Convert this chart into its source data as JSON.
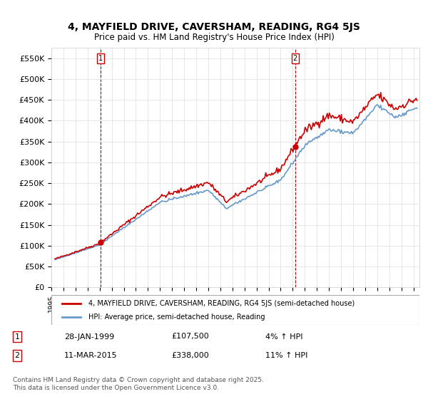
{
  "title_line1": "4, MAYFIELD DRIVE, CAVERSHAM, READING, RG4 5JS",
  "title_line2": "Price paid vs. HM Land Registry's House Price Index (HPI)",
  "ylabel": "",
  "xlabel": "",
  "ylim": [
    0,
    575000
  ],
  "yticks": [
    0,
    50000,
    100000,
    150000,
    200000,
    250000,
    300000,
    350000,
    400000,
    450000,
    500000,
    550000
  ],
  "ytick_labels": [
    "£0",
    "£50K",
    "£100K",
    "£150K",
    "£200K",
    "£250K",
    "£300K",
    "£350K",
    "£400K",
    "£450K",
    "£500K",
    "£550K"
  ],
  "legend_label1": "4, MAYFIELD DRIVE, CAVERSHAM, READING, RG4 5JS (semi-detached house)",
  "legend_label2": "HPI: Average price, semi-detached house, Reading",
  "marker1_label": "1",
  "marker1_date": "28-JAN-1999",
  "marker1_price": "£107,500",
  "marker1_hpi": "4% ↑ HPI",
  "marker1_x": 1999.08,
  "marker1_y": 107500,
  "marker2_label": "2",
  "marker2_date": "11-MAR-2015",
  "marker2_price": "£338,000",
  "marker2_hpi": "11% ↑ HPI",
  "marker2_x": 2015.19,
  "marker2_y": 338000,
  "line_color_price": "#cc0000",
  "line_color_hpi": "#6699cc",
  "vline_color": "#cc0000",
  "marker_box_color": "#cc0000",
  "footer_text": "Contains HM Land Registry data © Crown copyright and database right 2025.\nThis data is licensed under the Open Government Licence v3.0.",
  "background_color": "#ffffff",
  "grid_color": "#dddddd",
  "xmin": 1995,
  "xmax": 2025.5
}
